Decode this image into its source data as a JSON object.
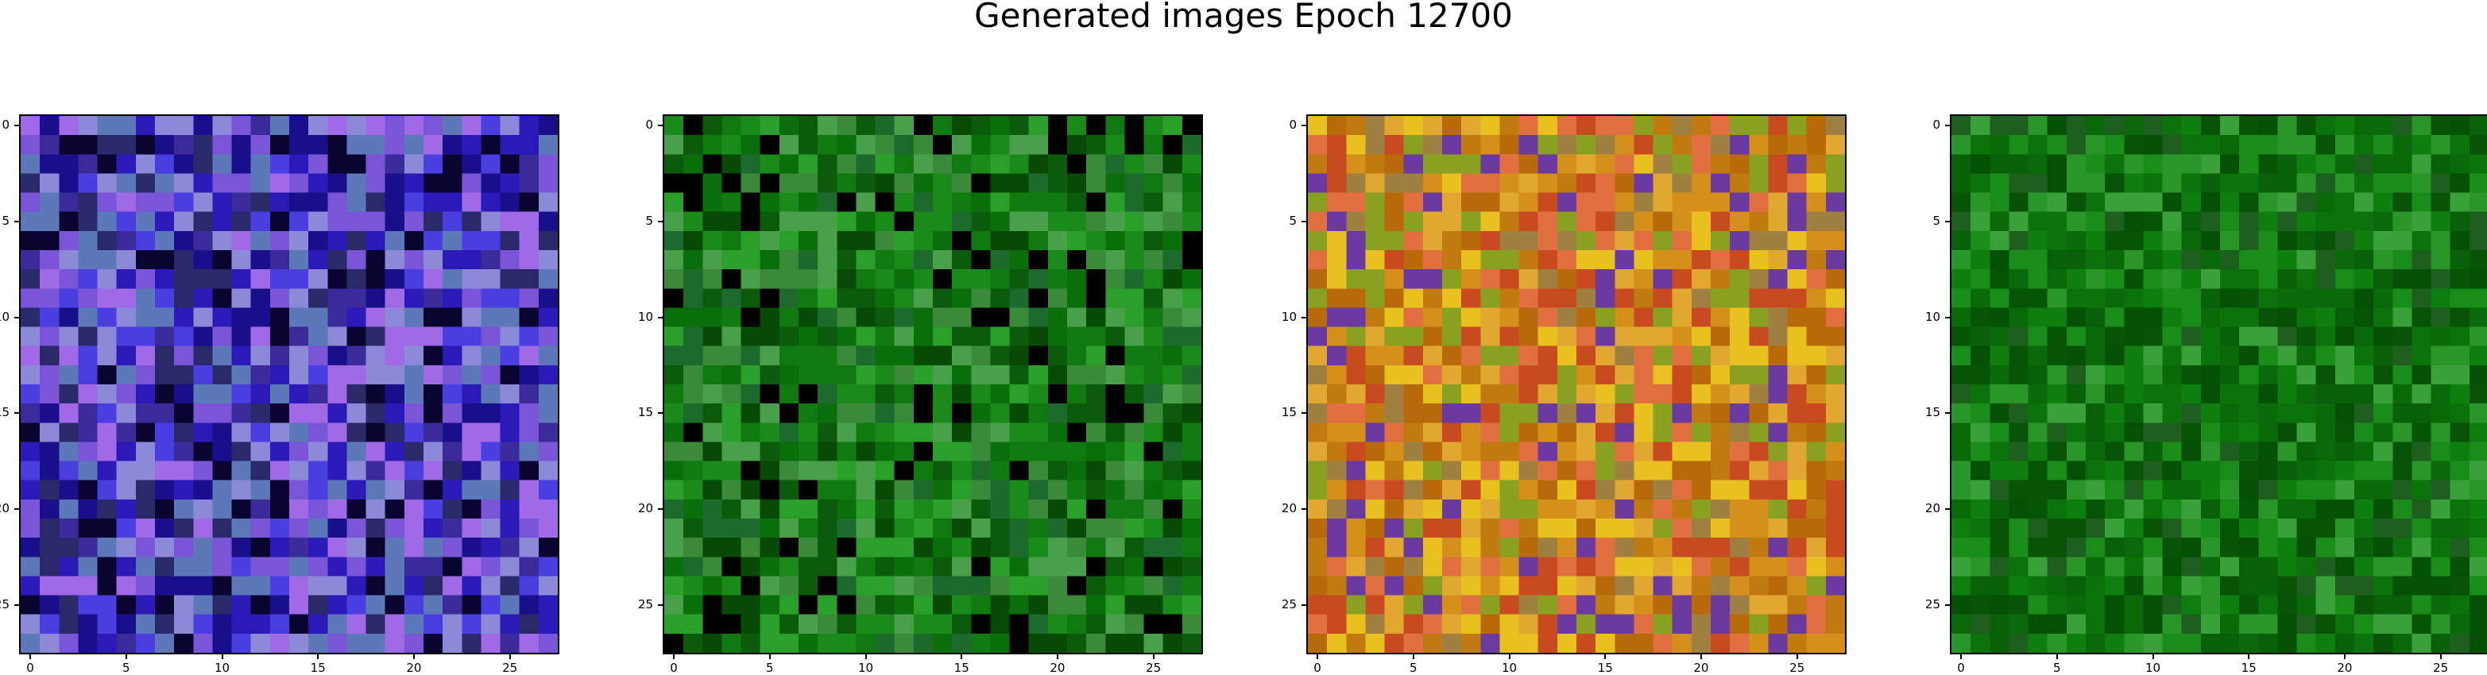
{
  "figure": {
    "title": "Generated images Epoch 12700"
  },
  "axes": {
    "ticks": [
      0,
      5,
      10,
      15,
      20,
      25
    ],
    "grid_size": 28
  },
  "panels": [
    {
      "name": "image-1",
      "palette": [
        "#2b1ab8",
        "#4a3ee0",
        "#1a0f8a",
        "#7a55d8",
        "#8c8ad8",
        "#3a2a9a",
        "#0a0530",
        "#5c78b8",
        "#a06ae6",
        "#2a2a6a"
      ]
    },
    {
      "name": "image-2",
      "palette": [
        "#0a6e0a",
        "#1a8a1a",
        "#0c5a0c",
        "#2aa02a",
        "#064a06",
        "#3a8a3a",
        "#107a10",
        "#000000",
        "#1c6a2c",
        "#4aa04a"
      ]
    },
    {
      "name": "image-3",
      "palette": [
        "#d4901a",
        "#c07a10",
        "#e0a830",
        "#b86a0a",
        "#e8c020",
        "#8aa020",
        "#c84a20",
        "#6a3aa0",
        "#a08040",
        "#e07040"
      ]
    },
    {
      "name": "image-4",
      "palette": [
        "#0a6a0a",
        "#0e7e0e",
        "#075407",
        "#1a8c1a",
        "#045004",
        "#2a962a",
        "#0c720c",
        "#1e5e1e",
        "#3aa03a",
        "#086008"
      ]
    }
  ]
}
